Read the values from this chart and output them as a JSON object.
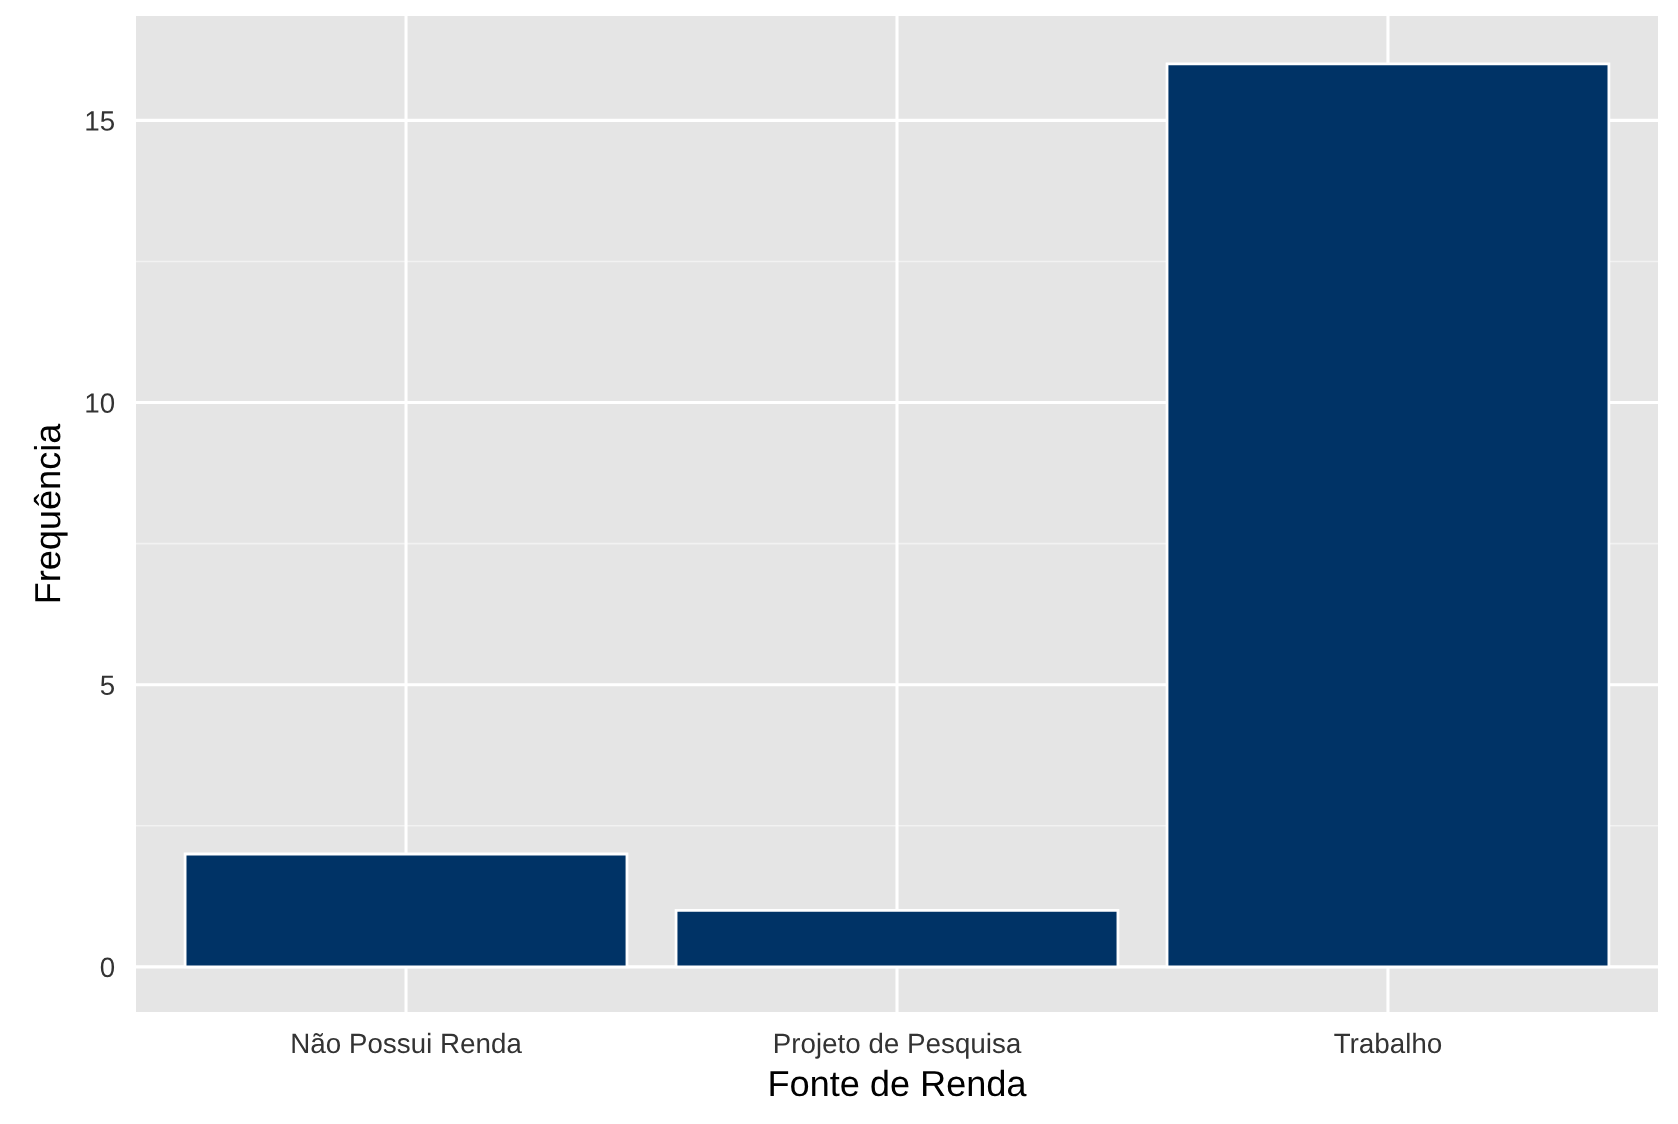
{
  "chart_data": {
    "type": "bar",
    "xlabel": "Fonte de Renda",
    "ylabel": "Frequência",
    "categories": [
      "Não Possui Renda",
      "Projeto de Pesquisa",
      "Trabalho"
    ],
    "values": [
      2,
      1,
      16
    ],
    "color": "#003366",
    "ylim": [
      -0.8,
      16.85
    ],
    "yticks": [
      0,
      5,
      10,
      15
    ],
    "grid": true
  }
}
